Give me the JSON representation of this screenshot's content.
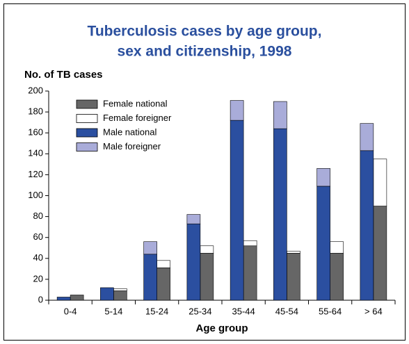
{
  "chart_data": {
    "type": "stacked_grouped_bar",
    "title": [
      "Tuberculosis cases by age group,",
      "sex and citizenship, 1998"
    ],
    "y_label": "No. of TB cases",
    "x_label": "Age group",
    "categories": [
      "0-4",
      "5-14",
      "15-24",
      "25-34",
      "35-44",
      "45-54",
      "55-64",
      "> 64"
    ],
    "series": [
      {
        "name": "Female national",
        "color": "#666666",
        "stack": "right",
        "values": [
          5,
          9,
          31,
          45,
          52,
          45,
          45,
          90
        ]
      },
      {
        "name": "Female foreigner",
        "color": "#ffffff",
        "stack": "right",
        "values": [
          0,
          2,
          7,
          7,
          5,
          2,
          11,
          45
        ]
      },
      {
        "name": "Male national",
        "color": "#2b4fa0",
        "stack": "left",
        "values": [
          3,
          12,
          44,
          73,
          172,
          164,
          109,
          143
        ]
      },
      {
        "name": "Male foreigner",
        "color": "#a9acd9",
        "stack": "left",
        "values": [
          0,
          0,
          12,
          9,
          19,
          26,
          17,
          26
        ]
      }
    ],
    "ylim": [
      0,
      200
    ],
    "yticks": [
      0,
      20,
      40,
      60,
      80,
      100,
      120,
      140,
      160,
      180,
      200
    ],
    "legend": "top-left"
  }
}
